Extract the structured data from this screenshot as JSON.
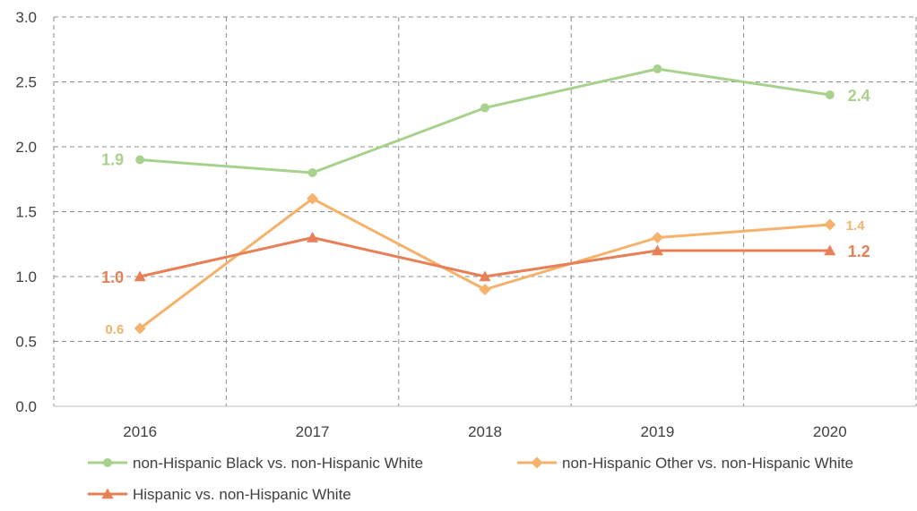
{
  "chart_data": {
    "type": "line",
    "categories": [
      "2016",
      "2017",
      "2018",
      "2019",
      "2020"
    ],
    "ylim": [
      0,
      3.0
    ],
    "yticks": [
      "0.0",
      "0.5",
      "1.0",
      "1.5",
      "2.0",
      "2.5",
      "3.0"
    ],
    "grid": true,
    "legend_position": "bottom",
    "series": [
      {
        "name": "non-Hispanic Black vs. non-Hispanic White",
        "values": [
          1.9,
          1.8,
          2.3,
          2.6,
          2.4
        ],
        "color": "#a9d18e",
        "marker": "circle",
        "labels": [
          {
            "index": 0,
            "text": "1.9"
          },
          {
            "index": 4,
            "text": "2.4"
          }
        ]
      },
      {
        "name": "non-Hispanic Other vs. non-Hispanic White",
        "values": [
          0.6,
          1.6,
          0.9,
          1.3,
          1.4
        ],
        "color": "#f4b26b",
        "marker": "diamond",
        "labels": [
          {
            "index": 0,
            "text": "0.6"
          },
          {
            "index": 4,
            "text": "1.4"
          }
        ]
      },
      {
        "name": "Hispanic vs. non-Hispanic White",
        "values": [
          1.0,
          1.3,
          1.0,
          1.2,
          1.2
        ],
        "color": "#e87f57",
        "marker": "triangle",
        "labels": [
          {
            "index": 0,
            "text": "1.0"
          },
          {
            "index": 4,
            "text": "1.2"
          }
        ]
      }
    ]
  }
}
